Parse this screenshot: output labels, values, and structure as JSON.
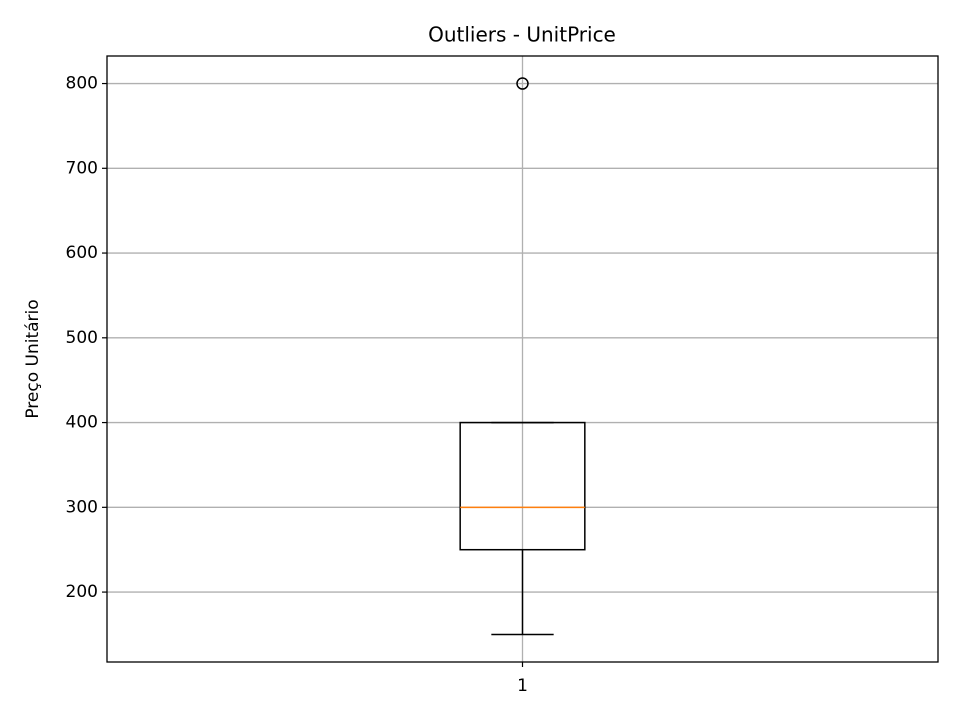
{
  "chart_data": {
    "type": "box",
    "title": "Outliers - UnitPrice",
    "y_label": "Preço Unitário",
    "categories": [
      "1"
    ],
    "boxes": [
      {
        "whislo": 150,
        "q1": 250,
        "med": 300,
        "q3": 400,
        "whishi": 400,
        "fliers": [
          800
        ]
      }
    ],
    "ylim": [
      117.5,
      832.5
    ],
    "yticks": [
      200,
      300,
      400,
      500,
      600,
      700,
      800
    ],
    "xlim": [
      0.5,
      1.5
    ],
    "grid": true,
    "box_color": "#000000",
    "median_color": "#ff7f0e"
  }
}
